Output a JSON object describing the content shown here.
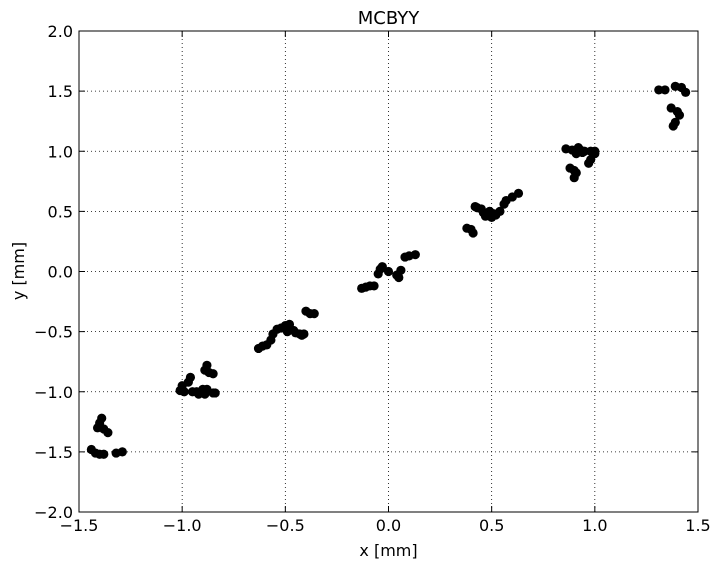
{
  "chart_data": {
    "type": "scatter",
    "title": "MCBYY",
    "xlabel": "x [mm]",
    "ylabel": "y [mm]",
    "xlim": [
      -1.5,
      1.5
    ],
    "ylim": [
      -2.0,
      2.0
    ],
    "xticks": [
      -1.5,
      -1.0,
      -0.5,
      0.0,
      0.5,
      1.0,
      1.5
    ],
    "xtick_labels": [
      "−1.5",
      "−1.0",
      "−0.5",
      "0.0",
      "0.5",
      "1.0",
      "1.5"
    ],
    "yticks": [
      -2.0,
      -1.5,
      -1.0,
      -0.5,
      0.0,
      0.5,
      1.0,
      1.5,
      2.0
    ],
    "ytick_labels": [
      "−2.0",
      "−1.5",
      "−1.0",
      "−0.5",
      "0.0",
      "0.5",
      "1.0",
      "1.5",
      "2.0"
    ],
    "grid": true,
    "marker_color": "#000000",
    "points": [
      [
        -1.44,
        -1.48
      ],
      [
        -1.42,
        -1.51
      ],
      [
        -1.4,
        -1.52
      ],
      [
        -1.38,
        -1.52
      ],
      [
        -1.32,
        -1.51
      ],
      [
        -1.29,
        -1.5
      ],
      [
        -1.41,
        -1.3
      ],
      [
        -1.4,
        -1.26
      ],
      [
        -1.39,
        -1.22
      ],
      [
        -1.36,
        -1.34
      ],
      [
        -1.38,
        -1.31
      ],
      [
        -1.01,
        -0.99
      ],
      [
        -1.0,
        -0.95
      ],
      [
        -0.99,
        -1.0
      ],
      [
        -0.97,
        -0.92
      ],
      [
        -0.96,
        -0.88
      ],
      [
        -0.95,
        -1.0
      ],
      [
        -0.93,
        -1.0
      ],
      [
        -0.92,
        -1.02
      ],
      [
        -0.91,
        -1.01
      ],
      [
        -0.9,
        -0.98
      ],
      [
        -0.89,
        -1.02
      ],
      [
        -0.88,
        -0.98
      ],
      [
        -0.89,
        -0.82
      ],
      [
        -0.88,
        -0.78
      ],
      [
        -0.87,
        -0.84
      ],
      [
        -0.85,
        -0.85
      ],
      [
        -0.85,
        -1.01
      ],
      [
        -0.84,
        -1.01
      ],
      [
        -0.63,
        -0.64
      ],
      [
        -0.61,
        -0.62
      ],
      [
        -0.59,
        -0.61
      ],
      [
        -0.57,
        -0.57
      ],
      [
        -0.56,
        -0.52
      ],
      [
        -0.54,
        -0.48
      ],
      [
        -0.52,
        -0.47
      ],
      [
        -0.5,
        -0.45
      ],
      [
        -0.49,
        -0.5
      ],
      [
        -0.48,
        -0.44
      ],
      [
        -0.46,
        -0.49
      ],
      [
        -0.45,
        -0.51
      ],
      [
        -0.43,
        -0.52
      ],
      [
        -0.42,
        -0.53
      ],
      [
        -0.41,
        -0.52
      ],
      [
        -0.4,
        -0.33
      ],
      [
        -0.38,
        -0.35
      ],
      [
        -0.36,
        -0.35
      ],
      [
        -0.13,
        -0.14
      ],
      [
        -0.11,
        -0.13
      ],
      [
        -0.09,
        -0.12
      ],
      [
        -0.07,
        -0.12
      ],
      [
        -0.05,
        -0.02
      ],
      [
        -0.04,
        0.02
      ],
      [
        -0.03,
        0.04
      ],
      [
        0.0,
        0.0
      ],
      [
        0.04,
        -0.03
      ],
      [
        0.05,
        -0.05
      ],
      [
        0.06,
        0.01
      ],
      [
        0.08,
        0.12
      ],
      [
        0.1,
        0.13
      ],
      [
        0.13,
        0.14
      ],
      [
        0.38,
        0.36
      ],
      [
        0.4,
        0.35
      ],
      [
        0.41,
        0.32
      ],
      [
        0.42,
        0.54
      ],
      [
        0.43,
        0.53
      ],
      [
        0.45,
        0.52
      ],
      [
        0.46,
        0.49
      ],
      [
        0.47,
        0.46
      ],
      [
        0.49,
        0.5
      ],
      [
        0.5,
        0.45
      ],
      [
        0.51,
        0.48
      ],
      [
        0.52,
        0.47
      ],
      [
        0.54,
        0.5
      ],
      [
        0.56,
        0.56
      ],
      [
        0.57,
        0.59
      ],
      [
        0.6,
        0.62
      ],
      [
        0.63,
        0.65
      ],
      [
        0.86,
        1.02
      ],
      [
        0.88,
        0.86
      ],
      [
        0.89,
        1.01
      ],
      [
        0.9,
        0.84
      ],
      [
        0.9,
        0.78
      ],
      [
        0.91,
        0.82
      ],
      [
        0.91,
        0.98
      ],
      [
        0.92,
        1.03
      ],
      [
        0.93,
        1.01
      ],
      [
        0.94,
        0.99
      ],
      [
        0.95,
        1.0
      ],
      [
        0.97,
        0.9
      ],
      [
        0.98,
        0.93
      ],
      [
        0.98,
        1.0
      ],
      [
        1.0,
        0.98
      ],
      [
        1.0,
        1.0
      ],
      [
        1.31,
        1.51
      ],
      [
        1.34,
        1.51
      ],
      [
        1.37,
        1.36
      ],
      [
        1.38,
        1.21
      ],
      [
        1.39,
        1.24
      ],
      [
        1.39,
        1.54
      ],
      [
        1.4,
        1.33
      ],
      [
        1.41,
        1.3
      ],
      [
        1.42,
        1.53
      ],
      [
        1.44,
        1.49
      ]
    ]
  }
}
